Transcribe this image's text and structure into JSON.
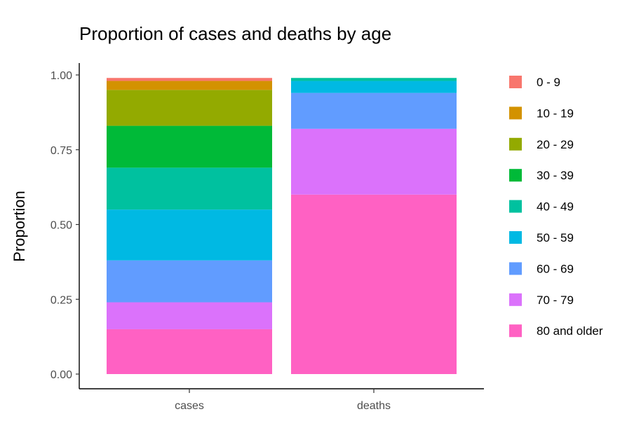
{
  "chart_data": {
    "type": "bar",
    "stacked": true,
    "title": "Proportion of cases and deaths by age",
    "xlabel": "",
    "ylabel": "Proportion",
    "categories": [
      "cases",
      "deaths"
    ],
    "ylim": [
      0,
      1
    ],
    "yticks": [
      "0.00",
      "0.25",
      "0.50",
      "0.75",
      "1.00"
    ],
    "ytick_values": [
      0,
      0.25,
      0.5,
      0.75,
      1.0
    ],
    "grid": false,
    "legend_position": "right",
    "series": [
      {
        "name": "0 - 9",
        "color": "#F8766D",
        "values": [
          0.01,
          0.0
        ]
      },
      {
        "name": "10 - 19",
        "color": "#D39200",
        "values": [
          0.03,
          0.0
        ]
      },
      {
        "name": "20 - 29",
        "color": "#93AA00",
        "values": [
          0.12,
          0.0
        ]
      },
      {
        "name": "30 - 39",
        "color": "#00BA38",
        "values": [
          0.14,
          0.0
        ]
      },
      {
        "name": "40 - 49",
        "color": "#00C19F",
        "values": [
          0.14,
          0.01
        ]
      },
      {
        "name": "50 - 59",
        "color": "#00B9E3",
        "values": [
          0.17,
          0.04
        ]
      },
      {
        "name": "60 - 69",
        "color": "#619CFF",
        "values": [
          0.14,
          0.12
        ]
      },
      {
        "name": "70 - 79",
        "color": "#DB72FB",
        "values": [
          0.09,
          0.22
        ]
      },
      {
        "name": "80 and older",
        "color": "#FF61C3",
        "values": [
          0.15,
          0.6
        ]
      }
    ]
  }
}
